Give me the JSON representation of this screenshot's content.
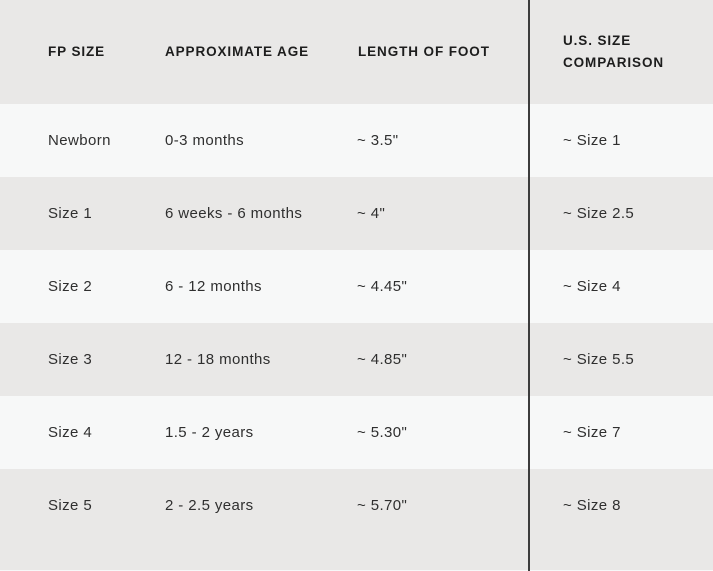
{
  "table": {
    "headers": {
      "col1": "FP SIZE",
      "col2": "APPROXIMATE AGE",
      "col3": "LENGTH OF FOOT",
      "col4": "U.S. SIZE COMPARISON"
    },
    "rows": [
      {
        "fp_size": "Newborn",
        "age": "0-3 months",
        "foot_length": "~ 3.5\"",
        "us_size": "~ Size 1"
      },
      {
        "fp_size": "Size 1",
        "age": "6 weeks - 6 months",
        "foot_length": "~ 4\"",
        "us_size": "~ Size 2.5"
      },
      {
        "fp_size": "Size 2",
        "age": "6 - 12 months",
        "foot_length": "~ 4.45\"",
        "us_size": "~ Size 4"
      },
      {
        "fp_size": "Size 3",
        "age": "12 - 18 months",
        "foot_length": "~ 4.85\"",
        "us_size": "~ Size 5.5"
      },
      {
        "fp_size": "Size 4",
        "age": "1.5 - 2 years",
        "foot_length": "~ 5.30\"",
        "us_size": "~ Size 7"
      },
      {
        "fp_size": "Size 5",
        "age": "2 - 2.5 years",
        "foot_length": "~ 5.70\"",
        "us_size": "~ Size 8"
      }
    ]
  },
  "colors": {
    "stripe_gray": "#e9e8e7",
    "stripe_light": "#f7f8f8",
    "header_text": "#1d1d1d",
    "body_text": "#2f2f2f",
    "divider": "#3c3c3c"
  }
}
